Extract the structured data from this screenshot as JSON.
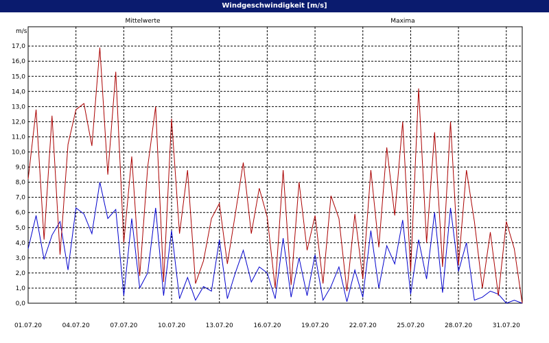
{
  "window": {
    "title": "Windgeschwindigkeit [m/s]"
  },
  "chart_data": {
    "type": "line",
    "title": "Windgeschwindigkeit [m/s]",
    "ylabel": "m/s",
    "ylim": [
      0,
      17.5
    ],
    "xlim": [
      "01.07.20",
      "01.08.20"
    ],
    "yticks": [
      "0,0",
      "1,0",
      "2,0",
      "3,0",
      "4,0",
      "5,0",
      "6,0",
      "7,0",
      "8,0",
      "9,0",
      "10,0",
      "11,0",
      "12,0",
      "13,0",
      "14,0",
      "15,0",
      "16,0",
      "17,0"
    ],
    "xticks": [
      "01.07.20",
      "04.07.20",
      "07.07.20",
      "10.07.20",
      "13.07.20",
      "16.07.20",
      "19.07.20",
      "22.07.20",
      "25.07.20",
      "28.07.20",
      "31.07.20"
    ],
    "grid": true,
    "legend_position": "top",
    "colors": {
      "mittelwerte": "#0000cc",
      "maxima": "#aa0000"
    },
    "series": [
      {
        "name": "Mittelwerte",
        "x_day": [
          1,
          1.5,
          2,
          2.5,
          3,
          3.5,
          4,
          4.5,
          5,
          5.5,
          6,
          6.5,
          7,
          7.5,
          8,
          8.5,
          9,
          9.5,
          10,
          10.5,
          11,
          11.5,
          12,
          12.5,
          13,
          13.5,
          14,
          14.5,
          15,
          15.5,
          16,
          16.5,
          17,
          17.5,
          18,
          18.5,
          19,
          19.5,
          20,
          20.5,
          21,
          21.5,
          22,
          22.5,
          23,
          23.5,
          24,
          24.5,
          25,
          25.5,
          26,
          26.5,
          27,
          27.5,
          28,
          28.5,
          29,
          29.5,
          30,
          30.5,
          31,
          31.5,
          32
        ],
        "values": [
          3.6,
          5.8,
          2.9,
          4.5,
          5.4,
          2.2,
          6.3,
          5.9,
          4.6,
          8.0,
          5.6,
          6.2,
          0.5,
          5.6,
          1.0,
          2.0,
          6.3,
          0.5,
          4.8,
          0.3,
          1.7,
          0.2,
          1.1,
          0.8,
          4.2,
          0.3,
          2.0,
          3.5,
          1.4,
          2.4,
          2.0,
          0.3,
          4.3,
          0.4,
          3.0,
          0.5,
          3.2,
          0.2,
          1.1,
          2.4,
          0.1,
          2.2,
          0.4,
          4.8,
          1.0,
          3.8,
          2.6,
          5.5,
          0.6,
          4.2,
          1.6,
          6.0,
          0.7,
          6.3,
          2.1,
          4.0,
          0.2,
          0.4,
          0.8,
          0.6,
          0.0,
          0.2,
          0.0
        ]
      },
      {
        "name": "Maxima",
        "x_day": [
          1,
          1.5,
          2,
          2.5,
          3,
          3.5,
          4,
          4.5,
          5,
          5.5,
          6,
          6.5,
          7,
          7.5,
          8,
          8.5,
          9,
          9.5,
          10,
          10.5,
          11,
          11.5,
          12,
          12.5,
          13,
          13.5,
          14,
          14.5,
          15,
          15.5,
          16,
          16.5,
          17,
          17.5,
          18,
          18.5,
          19,
          19.5,
          20,
          20.5,
          21,
          21.5,
          22,
          22.5,
          23,
          23.5,
          24,
          24.5,
          25,
          25.5,
          26,
          26.5,
          27,
          27.5,
          28,
          28.5,
          29,
          29.5,
          30,
          30.5,
          31,
          31.5,
          32
        ],
        "values": [
          8.2,
          12.8,
          4.2,
          12.4,
          3.2,
          10.5,
          12.8,
          13.2,
          10.4,
          16.9,
          8.5,
          15.3,
          4.0,
          9.7,
          1.8,
          9.0,
          13.0,
          1.4,
          12.2,
          4.6,
          8.8,
          1.3,
          2.8,
          5.6,
          6.6,
          2.6,
          5.9,
          9.3,
          4.6,
          7.6,
          5.7,
          1.0,
          8.8,
          1.2,
          8.0,
          3.5,
          5.8,
          1.3,
          7.1,
          5.6,
          0.8,
          5.9,
          1.6,
          8.8,
          3.7,
          10.3,
          5.8,
          12.0,
          2.1,
          14.2,
          4.0,
          11.3,
          2.4,
          12.0,
          2.5,
          8.8,
          5.4,
          1.0,
          4.7,
          0.5,
          5.4,
          3.6,
          0.0
        ]
      }
    ]
  }
}
